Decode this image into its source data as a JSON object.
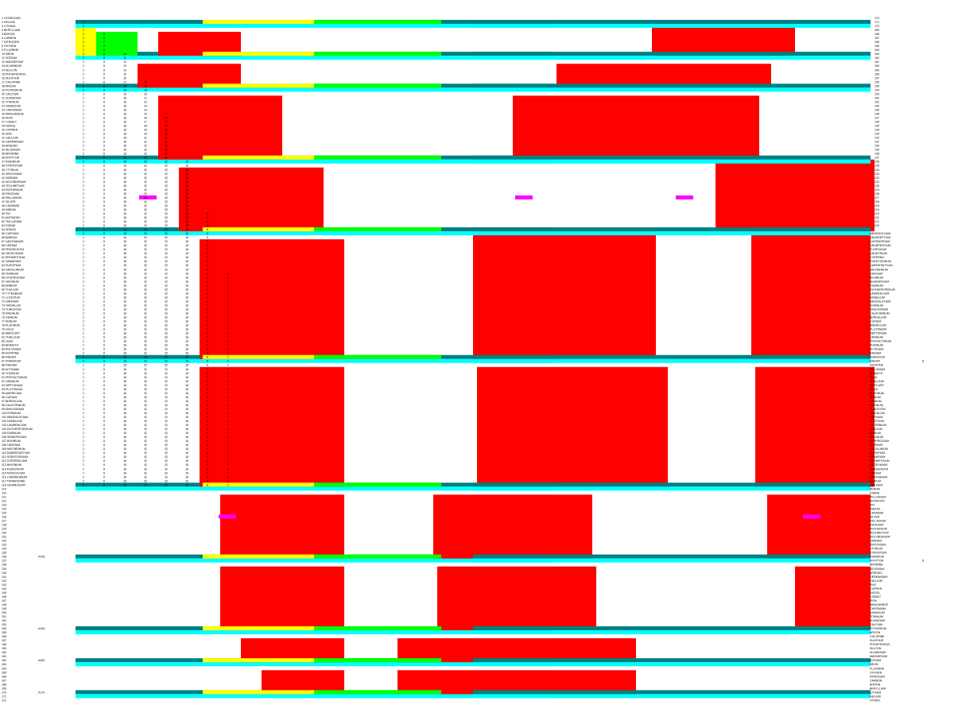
{
  "chart_data": {
    "type": "heatmap",
    "title": "",
    "xlabel": "",
    "ylabel": "",
    "grid": false,
    "legend": "none",
    "total_rows": 172,
    "colors": {
      "s_block": "#FFFF00",
      "p_block": "#00FF00",
      "d_block": "#FF0000",
      "f_block": "#FF0000",
      "noble_gas_row": "#008080",
      "alkali_row": "#00FFFF",
      "special_marker": "#FF00FF",
      "text": "#000000"
    },
    "left_labels_top": [
      "1 HYDROGEN",
      "2 HELIUM",
      "3 LITHIUM",
      "4 BERYLLIUM",
      "5 BORON",
      "6 CARBON",
      "7 NITROGEN",
      "8 OXYGEN",
      "9 FLUORINE",
      "10 NEON",
      "11 SODIUM",
      "12 MAGNESIUM",
      "13 ALUMINIUM",
      "14 SILICON",
      "15 PHOSPHORUS",
      "16 SULPHUR",
      "17 CHLORINE",
      "18 ARGON",
      "19 POTASSIUM",
      "20 CALCIUM",
      "21 SCANDIUM",
      "22 TITANIUM",
      "23 VANADIUM",
      "24 CHROMIUM",
      "25 MANGANESE",
      "26 IRON",
      "27 COBALT",
      "28 NICKEL",
      "29 COPPER",
      "30 ZINC",
      "31 GALLIUM",
      "32 GERMANIUM",
      "33 ARSENIC",
      "34 SELENIUM",
      "35 BROMINE",
      "36 KRYPTON",
      "37 RUBIDIUM",
      "38 STRONTIUM",
      "39 YTTRIUM",
      "40 ZIRCONIUM",
      "41 NIOBIUM",
      "42 MOLYBDENUM",
      "43 TECHNETIUM",
      "44 RUTHENIUM",
      "45 RHODIUM",
      "46 PALLADIUM",
      "47 SILVER",
      "48 CADMIUM",
      "49 INDIUM",
      "50 TIN",
      "51 ANTIMONY",
      "52 TELLURIUM",
      "53 IODINE",
      "54 XENON",
      "55 CAESIUM",
      "56 BARIUM",
      "57 LANTHANUM",
      "58 CERIUM",
      "59 PRASEODYM",
      "60 NEODYMIUM",
      "61 PROMETHIUM",
      "62 SAMARIUM",
      "63 EUROPIUM",
      "64 GADOLINIUM",
      "65 TERBIUM",
      "66 DYSPROSIUM",
      "67 HOLMIUM",
      "68 ERBIUM",
      "69 THULIUM",
      "70 YTTERBIUM",
      "71 LUTETIUM",
      "72 HAFNIUM",
      "73 TANTALUM",
      "74 TUNGSTEN",
      "75 RHENIUM",
      "76 OSMIUM",
      "77 IRIDIUM",
      "78 PLATINUM",
      "79 GOLD",
      "80 MERCURY",
      "81 THALLIUM",
      "82 LEAD",
      "83 BISMUTH",
      "84 POLONIUM",
      "85 ASTATINE",
      "86 RADON",
      "87 FRANCIUM",
      "88 RADIUM",
      "89 ACTINIUM",
      "90 THORIUM",
      "91 PROTACTINIUM",
      "92 URANIUM",
      "93 NEPTUNIUM",
      "94 PLUTONIUM",
      "95 AMERICIUM",
      "96 CURIUM",
      "97 BERKELIUM",
      "98 CALIFORNIUM",
      "99 EINSTEINIUM",
      "100 FERMIUM",
      "101 MENDELEVIUM",
      "102 NOBELIUM",
      "103 LAWRENCIUM",
      "104 RUTHERFORDIUM",
      "105 DUBNIUM",
      "106 SEABORGIUM",
      "107 BOHRIUM",
      "108 HASSIUM",
      "109 MEITNERIUM",
      "110 DARMSTADTIUM",
      "111 ROENTGENIUM",
      "112 COPERNICIUM",
      "113 NIHONIUM",
      "114 FLEROVIUM",
      "115 MOSCOVIUM",
      "116 LIVERMORIUM",
      "117 TENNESSINE",
      "118 OGANESSON"
    ],
    "right_labels_top": [
      "172",
      "171",
      "170",
      "169",
      "168",
      "167",
      "166",
      "165",
      "164",
      "163",
      "162",
      "161",
      "160",
      "159",
      "158",
      "157",
      "156",
      "155",
      "154",
      "153",
      "152",
      "151",
      "150",
      "149",
      "148",
      "147",
      "146",
      "145",
      "144",
      "143",
      "142",
      "141",
      "140",
      "139",
      "138",
      "137",
      "136",
      "135",
      "134",
      "133",
      "132",
      "131",
      "130",
      "129",
      "128",
      "127",
      "126",
      "125",
      "124",
      "123",
      "122",
      "121",
      "120"
    ],
    "right_labels_mid": [
      "MENDELEVIUM",
      "UNUNSEPTIUM",
      "LIVERMORIUM",
      "UNUNPENTIUM",
      "FLEROVIUM",
      "UNUNTRIUM",
      "COPERNIC",
      "ROENTGENIUM",
      "DARMSTADTIUM",
      "MEITNERIUM",
      "HASSIUM",
      "BOHRIUM",
      "SEABORGIUM",
      "DUBNIUM",
      "RUTHERFORDIUM",
      "LAWRENCIUM",
      "NOBELIUM",
      "MENDELEVIUM",
      "FERMIUM",
      "EINSTEINIUM",
      "CALIFORNIUM",
      "BERKELIUM",
      "CURIUM",
      "AMERICIUM",
      "PLUTONIUM",
      "NEPTUNIUM",
      "URANIUM",
      "PROTACTINIUM",
      "THORIUM",
      "ACTINIUM",
      "RADIUM",
      "FRANCIUM",
      "RADON",
      "ASTATINE",
      "POLONIUM",
      "BISMUTH",
      "LEAD",
      "THALLIUM",
      "MERCURY",
      "GOLD",
      "PLATINUM",
      "IRIDIUM",
      "OSMIUM",
      "RHENIUM",
      "TUNGSTEN",
      "TANTALUM",
      "HAFNIUM",
      "LUTETIUM",
      "YTTERBIUM",
      "THULIUM",
      "ERBIUM",
      "HOLMIUM",
      "DYSPROSIUM",
      "TERBIUM",
      "GADOLINIUM",
      "EUROPIUM",
      "SAMARIUM",
      "PROMETHIUM",
      "NEODYMIUM",
      "PRASEODYM",
      "CERIUM",
      "LANTHANUM",
      "BARIUM",
      "CAESIUM",
      "XENON",
      "IODINE",
      "TELLURIUM",
      "ANTIMONY",
      "TIN",
      "INDIUM",
      "CADMIUM",
      "SILVER",
      "PALLADIUM",
      "RHODIUM",
      "RUTHENIUM",
      "TECHNETIUM",
      "MOLYBDENUM",
      "NIOBIUM",
      "ZIRCONIUM",
      "YTTRIUM",
      "STRONTIUM",
      "RUBIDIUM",
      "KRYPTON",
      "BROMINE",
      "SELENIUM",
      "ARSENIC",
      "GERMANIUM",
      "GALLIUM",
      "ZINC",
      "COPPER",
      "NICKEL",
      "COBALT",
      "IRON",
      "MANGANESE",
      "CHROMIUM",
      "VANADIUM",
      "TITANIUM",
      "SCANDIUM",
      "CALCIUM",
      "POTASSIUM",
      "ARGON",
      "CHLORINE",
      "SULPHUR",
      "PHOSPHORUS",
      "SILICON",
      "ALUMINIUM",
      "MAGNESIUM",
      "SODIUM",
      "NEON",
      "FLUORINE",
      "OXYGEN",
      "NITROGEN",
      "CARBON",
      "BORON",
      "BERYLLIUM",
      "LITHIUM",
      "HELIUM",
      "HYDRO"
    ],
    "side_markers": [
      {
        "label": "#136",
        "row": 136,
        "side": "left"
      },
      {
        "label": "#154",
        "row": 154,
        "side": "left"
      },
      {
        "label": "#162",
        "row": 162,
        "side": "left"
      },
      {
        "label": "#170",
        "row": 170,
        "side": "left"
      },
      {
        "label": "8",
        "row": 87,
        "side": "right"
      },
      {
        "label": "8",
        "row": 137,
        "side": "right"
      }
    ],
    "shell_capacity": [
      2,
      8,
      18,
      32,
      32,
      18,
      8,
      2
    ]
  }
}
